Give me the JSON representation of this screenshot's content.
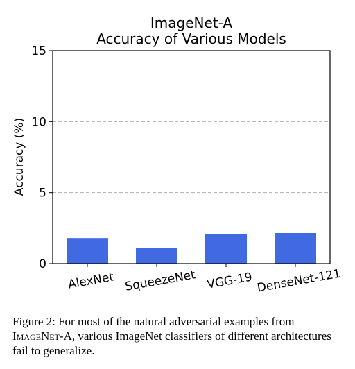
{
  "chart_data": {
    "type": "bar",
    "title_lines": [
      "ImageNet-A",
      "Accuracy of Various Models"
    ],
    "ylabel": "Accuracy (%)",
    "xlabel": "",
    "ylim": [
      0,
      15
    ],
    "yticks": [
      0,
      5,
      10,
      15
    ],
    "grid": "y-dashed",
    "categories": [
      "AlexNet",
      "SqueezeNet",
      "VGG-19",
      "DenseNet-121"
    ],
    "values": [
      1.8,
      1.1,
      2.1,
      2.15
    ],
    "bar_color": "#4169e1"
  },
  "caption": {
    "lead": "Figure 2: For most of the natural adversarial examples from",
    "dataset_name": "ImageNet-A",
    "rest": ", various ImageNet classifiers of different architectures fail to generalize."
  }
}
